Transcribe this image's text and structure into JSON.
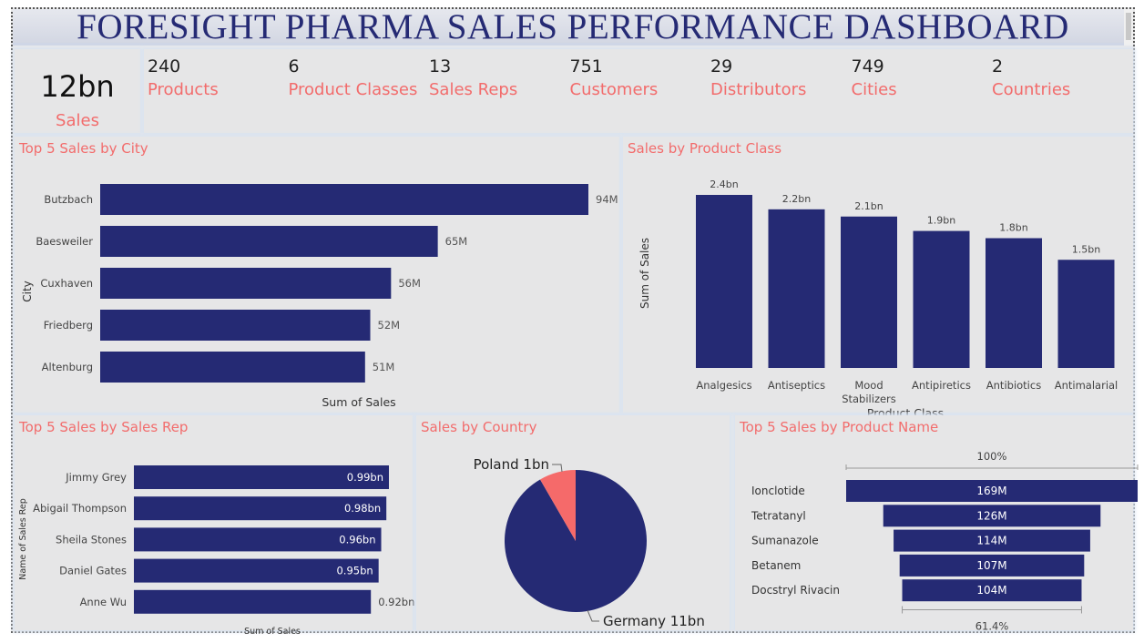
{
  "title": "FORESIGHT PHARMA SALES PERFORMANCE DASHBOARD",
  "colors": {
    "bar": "#252a74",
    "accent": "#f26c6c",
    "title": "#252a74"
  },
  "kpis": {
    "main": {
      "value": "12bn",
      "label": "Sales"
    },
    "items": [
      {
        "value": "240",
        "label": "Products"
      },
      {
        "value": "6",
        "label": "Product Classes"
      },
      {
        "value": "13",
        "label": "Sales Reps"
      },
      {
        "value": "751",
        "label": "Customers"
      },
      {
        "value": "29",
        "label": "Distributors"
      },
      {
        "value": "749",
        "label": "Cities"
      },
      {
        "value": "2",
        "label": "Countries"
      }
    ]
  },
  "chart_data": [
    {
      "id": "city",
      "type": "bar",
      "orientation": "horizontal",
      "title": "Top 5 Sales by City",
      "xlabel": "Sum of Sales",
      "ylabel": "City",
      "categories": [
        "Butzbach",
        "Baesweiler",
        "Cuxhaven",
        "Friedberg",
        "Altenburg"
      ],
      "values": [
        94,
        65,
        56,
        52,
        51
      ],
      "data_labels": [
        "94M",
        "65M",
        "56M",
        "52M",
        "51M"
      ],
      "unit": "M"
    },
    {
      "id": "class",
      "type": "bar",
      "orientation": "vertical",
      "title": "Sales by Product Class",
      "xlabel": "Product Class",
      "ylabel": "Sum of Sales",
      "categories": [
        "Analgesics",
        "Antiseptics",
        "Mood Stabilizers",
        "Antipiretics",
        "Antibiotics",
        "Antimalarial"
      ],
      "values": [
        2.4,
        2.2,
        2.1,
        1.9,
        1.8,
        1.5
      ],
      "data_labels": [
        "2.4bn",
        "2.2bn",
        "2.1bn",
        "1.9bn",
        "1.8bn",
        "1.5bn"
      ],
      "unit": "bn"
    },
    {
      "id": "rep",
      "type": "bar",
      "orientation": "horizontal",
      "title": "Top 5 Sales by Sales Rep",
      "xlabel": "Sum of Sales",
      "ylabel": "Name of Sales Rep",
      "categories": [
        "Jimmy Grey",
        "Abigail Thompson",
        "Sheila Stones",
        "Daniel Gates",
        "Anne Wu"
      ],
      "values": [
        0.99,
        0.98,
        0.96,
        0.95,
        0.92
      ],
      "data_labels": [
        "0.99bn",
        "0.98bn",
        "0.96bn",
        "0.95bn",
        "0.92bn"
      ],
      "unit": "bn"
    },
    {
      "id": "country",
      "type": "pie",
      "title": "Sales by Country",
      "categories": [
        "Germany",
        "Poland"
      ],
      "values": [
        11,
        1
      ],
      "data_labels": [
        "Germany 11bn",
        "Poland 1bn"
      ],
      "colors": [
        "#252a74",
        "#f56a6a"
      ],
      "unit": "bn"
    },
    {
      "id": "product",
      "type": "funnel",
      "title": "Top 5 Sales by Product Name",
      "categories": [
        "Ionclotide",
        "Tetratanyl",
        "Sumanazole",
        "Betanem",
        "Docstryl Rivacin"
      ],
      "values": [
        169,
        126,
        114,
        107,
        104
      ],
      "data_labels": [
        "169M",
        "126M",
        "114M",
        "107M",
        "104M"
      ],
      "top_percent_label": "100%",
      "bottom_percent_label": "61.4%",
      "unit": "M"
    }
  ]
}
